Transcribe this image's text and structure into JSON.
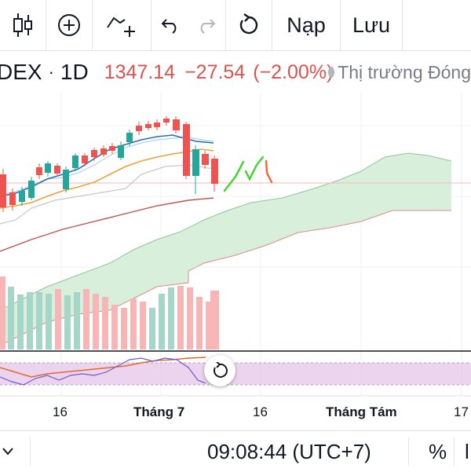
{
  "toolbar": {
    "buttons": [
      {
        "icon": "candlestick-icon"
      },
      {
        "icon": "add-indicator-icon"
      },
      {
        "icon": "compare-icon"
      },
      {
        "icon": "undo-icon"
      },
      {
        "icon": "redo-icon"
      },
      {
        "icon": "refresh-icon"
      }
    ],
    "load_label": "Nạp",
    "save_label": "Lưu"
  },
  "legend": {
    "symbol": "DEX",
    "separator": "·",
    "interval": "1D",
    "price": "1347.14",
    "change": "−27.54",
    "change_percent": "(−2.00%)",
    "market_status": "Thị trường Đóng"
  },
  "colors": {
    "up": "#26a69a",
    "down": "#ef5350",
    "up_volume": "#a5d6c7",
    "down_volume": "#f7b5b5",
    "cloud": "#d8efdc",
    "stoch_band": "#e7c9ea"
  },
  "chart_data": {
    "type": "candlestick",
    "x_ticks": [
      "16",
      "Tháng 7",
      "16",
      "Tháng Tám",
      "17"
    ],
    "series": [
      {
        "type": "candlestick"
      },
      {
        "type": "volume"
      },
      {
        "type": "ichimoku-cloud"
      },
      {
        "type": "stochastic"
      }
    ]
  },
  "bottom": {
    "time": "09:08:44 (UTC+7)",
    "percent_label": "%",
    "log_label": "l"
  }
}
